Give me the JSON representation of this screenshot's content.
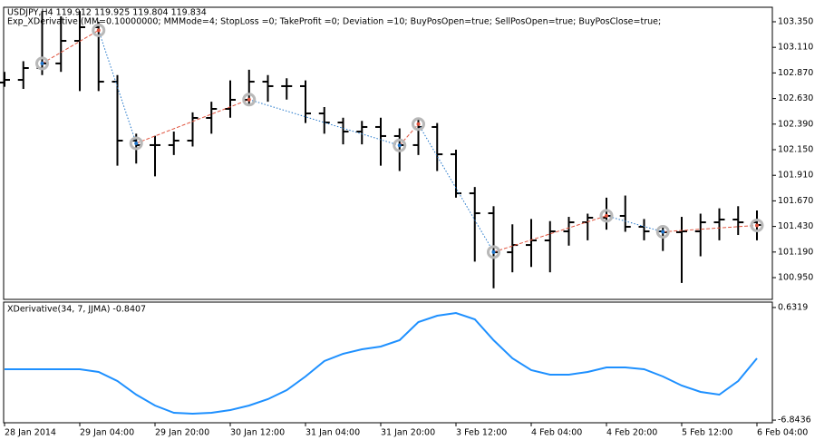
{
  "chart_data": [
    {
      "type": "ohlc",
      "title": "USDJPY,H4  119.912 119.925 119.804 119.834",
      "subtitle": "Exp_XDerivative (MM=0.10000000; MMMode=4; StopLoss =0; TakeProfit =0; Deviation =10; BuyPosOpen=true; SellPosOpen=true; BuyPosClose=true;",
      "categories": [
        "28 Jan 2014",
        null,
        null,
        null,
        "29 Jan 04:00",
        null,
        null,
        null,
        "29 Jan 20:00",
        null,
        null,
        null,
        "30 Jan 12:00",
        null,
        null,
        null,
        "31 Jan 04:00",
        null,
        null,
        null,
        "31 Jan 20:00",
        null,
        null,
        null,
        "3 Feb 12:00",
        null,
        null,
        null,
        "4 Feb 04:00",
        null,
        null,
        null,
        "4 Feb 20:00",
        null,
        null,
        null,
        "5 Feb 12:00",
        null,
        null,
        null,
        "6 Feb 04:00"
      ],
      "color": "#000000",
      "open": [
        102.78,
        102.805,
        102.916,
        102.959,
        103.171,
        103.299,
        102.788,
        102.235,
        102.193,
        102.193,
        102.235,
        102.448,
        102.533,
        102.618,
        102.788,
        102.746,
        102.746,
        102.49,
        102.405,
        102.32,
        102.363,
        102.278,
        102.193,
        102.363,
        102.107,
        101.741,
        101.554,
        101.188,
        101.256,
        101.299,
        101.384,
        101.469,
        101.512,
        101.529,
        101.427,
        101.384,
        101.376,
        101.384,
        101.469,
        101.495,
        101.469
      ],
      "high": [
        102.88,
        102.98,
        103.45,
        103.4,
        103.45,
        103.35,
        102.85,
        102.3,
        102.28,
        102.32,
        102.5,
        102.6,
        102.8,
        102.9,
        102.85,
        102.82,
        102.8,
        102.55,
        102.45,
        102.42,
        102.45,
        102.35,
        102.43,
        102.4,
        102.15,
        101.8,
        101.62,
        101.45,
        101.5,
        101.48,
        101.52,
        101.55,
        101.7,
        101.72,
        101.5,
        101.42,
        101.52,
        101.55,
        101.6,
        101.62,
        101.58
      ],
      "low": [
        102.74,
        102.72,
        102.85,
        102.88,
        102.7,
        102.7,
        102.0,
        102.02,
        101.9,
        102.1,
        102.18,
        102.3,
        102.45,
        102.56,
        102.6,
        102.62,
        102.4,
        102.3,
        102.2,
        102.2,
        102.0,
        101.95,
        102.1,
        101.95,
        101.7,
        101.1,
        100.85,
        101.0,
        101.05,
        101.0,
        101.25,
        101.3,
        101.4,
        101.38,
        101.3,
        101.2,
        100.9,
        101.15,
        101.3,
        101.35,
        101.3
      ],
      "close": [
        102.805,
        102.916,
        102.959,
        103.171,
        103.299,
        102.788,
        102.235,
        102.193,
        102.193,
        102.235,
        102.448,
        102.533,
        102.618,
        102.788,
        102.746,
        102.746,
        102.49,
        102.405,
        102.32,
        102.363,
        102.278,
        102.193,
        102.363,
        102.107,
        101.741,
        101.554,
        101.188,
        101.256,
        101.299,
        101.384,
        101.469,
        101.512,
        101.529,
        101.427,
        101.384,
        101.376,
        101.384,
        101.469,
        101.495,
        101.469,
        101.444
      ],
      "pivots": {
        "x": [
          2,
          5,
          7,
          13,
          21,
          22,
          26,
          32,
          35,
          40
        ],
        "values": [
          102.959,
          103.27,
          102.21,
          102.62,
          102.19,
          102.39,
          101.19,
          101.53,
          101.38,
          101.44
        ],
        "up_color": "#e0533d",
        "down_color": "#1e74c9"
      },
      "ylim": [
        100.746,
        103.486
      ],
      "yticks": [
        {
          "value": 100.95,
          "label": "100.950"
        },
        {
          "value": 101.19,
          "label": "101.190"
        },
        {
          "value": 101.43,
          "label": "101.430"
        },
        {
          "value": 101.67,
          "label": "101.670"
        },
        {
          "value": 101.91,
          "label": "101.910"
        },
        {
          "value": 102.15,
          "label": "102.150"
        },
        {
          "value": 102.39,
          "label": "102.390"
        },
        {
          "value": 102.63,
          "label": "102.630"
        },
        {
          "value": 102.87,
          "label": "102.870"
        },
        {
          "value": 103.11,
          "label": "103.110"
        },
        {
          "value": 103.35,
          "label": "103.350"
        }
      ],
      "grid": false
    },
    {
      "type": "line",
      "title": "XDerivative(34, 7, JJMA) -0.8407",
      "series": [
        {
          "name": "XDerivative",
          "color": "#1e90ff",
          "values": [
            -3.467,
            -3.467,
            -3.467,
            -3.467,
            -3.467,
            -3.648,
            -4.251,
            -5.155,
            -5.878,
            -6.36,
            -6.42,
            -6.36,
            -6.179,
            -5.878,
            -5.456,
            -4.853,
            -3.949,
            -2.924,
            -2.442,
            -2.141,
            -1.96,
            -1.538,
            -0.332,
            0.089,
            0.27,
            -0.152,
            -1.538,
            -2.744,
            -3.527,
            -3.829,
            -3.829,
            -3.648,
            -3.346,
            -3.346,
            -3.467,
            -3.949,
            -4.552,
            -4.974,
            -5.155,
            -4.251,
            -2.744
          ]
        }
      ],
      "ylim": [
        -7.02,
        0.99
      ],
      "yticks": [
        -6.8436,
        0.6319
      ],
      "grid": false
    }
  ]
}
